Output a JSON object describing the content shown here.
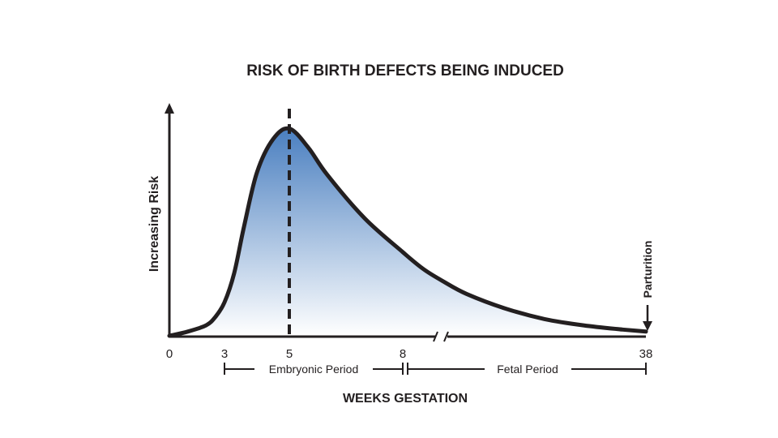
{
  "chart_data": {
    "type": "area",
    "title": "RISK OF BIRTH DEFECTS BEING INDUCED",
    "xlabel": "WEEKS GESTATION",
    "ylabel": "Increasing Risk",
    "x_ticks": [
      "0",
      "3",
      "5",
      "8",
      "38"
    ],
    "x_tick_values": [
      0,
      3,
      5,
      8,
      38
    ],
    "axis_break_between": [
      8,
      38
    ],
    "peak_marker_x": 5,
    "periods": [
      {
        "label": "Embryonic Period",
        "start": 3,
        "end": 8
      },
      {
        "label": "Fetal Period",
        "start": 8,
        "end": 38
      }
    ],
    "annotations": [
      {
        "label": "Parturition",
        "x": 38
      }
    ],
    "series": [
      {
        "x": [
          0,
          1,
          2,
          2.5,
          3,
          3.3,
          3.6,
          4,
          4.5,
          5,
          5.5,
          6,
          7,
          8,
          10,
          12,
          15,
          20,
          25,
          30,
          35,
          38
        ],
        "values": [
          0,
          0.02,
          0.05,
          0.09,
          0.16,
          0.3,
          0.52,
          0.78,
          0.94,
          0.99,
          0.9,
          0.77,
          0.56,
          0.4,
          0.32,
          0.26,
          0.2,
          0.13,
          0.08,
          0.05,
          0.03,
          0.02
        ]
      }
    ],
    "colors": {
      "fill_top": "#4a7fc0",
      "fill_bottom": "#ffffff",
      "line": "#231f20"
    }
  }
}
